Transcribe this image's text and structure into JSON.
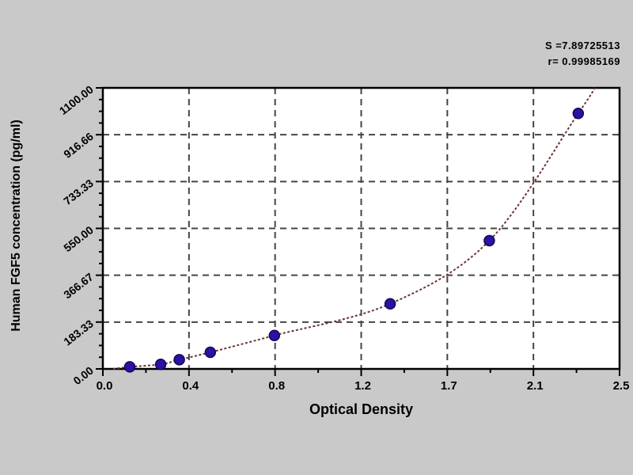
{
  "chart_data": {
    "type": "scatter",
    "title": "",
    "xlabel": "Optical Density",
    "ylabel": "Human FGF5 concentration (pg/ml)",
    "xlim": [
      0.0,
      2.5
    ],
    "ylim": [
      0,
      1100
    ],
    "x_tick_labels": [
      "0.0",
      "0.4",
      "0.8",
      "1.2",
      "1.7",
      "2.1",
      "2.5"
    ],
    "y_tick_labels": [
      "0.00",
      "183.33",
      "366.67",
      "550.00",
      "733.33",
      "916.66",
      "1100.00"
    ],
    "grid": "dashed",
    "legend": "none",
    "series": [
      {
        "name": "standard-points",
        "type": "scatter",
        "marker_color": "#2a12a5",
        "points_od_conc": [
          [
            0.13,
            8
          ],
          [
            0.28,
            18
          ],
          [
            0.37,
            36
          ],
          [
            0.52,
            65
          ],
          [
            0.83,
            131
          ],
          [
            1.39,
            255
          ],
          [
            1.87,
            502
          ],
          [
            2.3,
            1000
          ]
        ]
      },
      {
        "name": "fitted-curve",
        "type": "line",
        "line_color": "#6e3434",
        "curve_anchor_start": [
          0.05,
          0
        ],
        "curve_anchor_end": [
          2.38,
          1100
        ]
      }
    ],
    "annotations": [
      "S =7.89725513",
      "r= 0.99985169"
    ]
  },
  "colors": {
    "background": "#c9c9c9",
    "plot_background": "#ffffff",
    "axis": "#000000",
    "grid": "#454545",
    "marker": "#2a12a5",
    "marker_edge": "#140852",
    "curve": "#6e3434",
    "text": "#000000"
  }
}
